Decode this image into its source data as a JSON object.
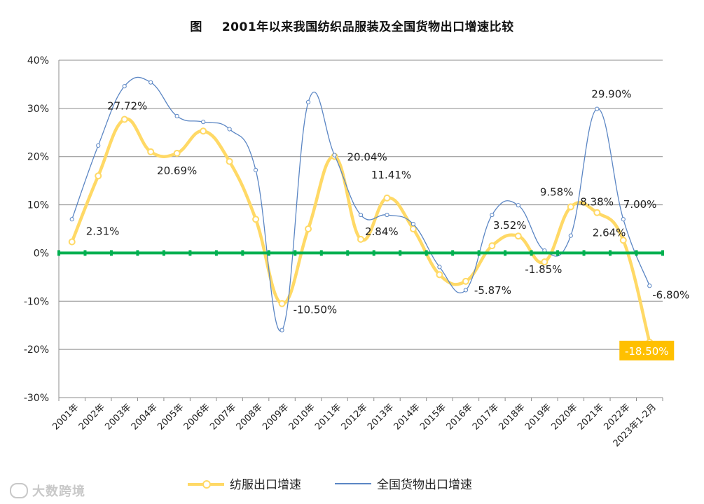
{
  "title": {
    "prefix": "图",
    "text": "2001年以来我国纺织品服装及全国货物出口增速比较"
  },
  "chart_data": {
    "type": "line",
    "title": "2001年以来我国纺织品服装及全国货物出口增速比较",
    "categories": [
      "2001年",
      "2002年",
      "2003年",
      "2004年",
      "2005年",
      "2006年",
      "2007年",
      "2008年",
      "2009年",
      "2010年",
      "2011年",
      "2012年",
      "2013年",
      "2014年",
      "2015年",
      "2016年",
      "2017年",
      "2018年",
      "2019年",
      "2020年",
      "2021年",
      "2022年",
      "2023年1-2月"
    ],
    "ylim": [
      -30,
      40
    ],
    "yticks": [
      -30,
      -20,
      -10,
      0,
      10,
      20,
      30,
      40
    ],
    "ytick_labels": [
      "-30%",
      "-20%",
      "-10%",
      "0%",
      "10%",
      "20%",
      "30%",
      "40%"
    ],
    "series": [
      {
        "name": "纺服出口增速",
        "color": "#ffd966",
        "values": [
          2.31,
          16,
          27.72,
          21,
          20.69,
          25.3,
          19,
          7,
          -10.5,
          5,
          20.04,
          2.84,
          11.41,
          5,
          -4.5,
          -5.87,
          1.5,
          3.52,
          -1.85,
          9.58,
          8.38,
          2.64,
          -18.5
        ]
      },
      {
        "name": "全国货物出口增速",
        "color": "#5b86c4",
        "values": [
          7,
          22.3,
          34.6,
          35.4,
          28.4,
          27.2,
          25.7,
          17.2,
          -16,
          31.3,
          20.3,
          7.9,
          7.9,
          6,
          -2.9,
          -7.7,
          7.9,
          9.9,
          0.5,
          3.6,
          29.9,
          7,
          -6.8
        ]
      }
    ],
    "data_labels": [
      {
        "text": "2.31%",
        "index": 0,
        "value": 2.31
      },
      {
        "text": "27.72%",
        "index": 2,
        "value": 27.72
      },
      {
        "text": "20.69%",
        "index": 4,
        "value": 20.69
      },
      {
        "text": "-10.50%",
        "index": 8,
        "value": -10.5
      },
      {
        "text": "20.04%",
        "index": 10,
        "value": 20.04
      },
      {
        "text": "2.84%",
        "index": 11,
        "value": 2.84
      },
      {
        "text": "11.41%",
        "index": 12,
        "value": 11.41
      },
      {
        "text": "-5.87%",
        "index": 15,
        "value": -5.87
      },
      {
        "text": "3.52%",
        "index": 17,
        "value": 3.52
      },
      {
        "text": "-1.85%",
        "index": 18,
        "value": -1.85
      },
      {
        "text": "9.58%",
        "index": 19,
        "value": 9.58
      },
      {
        "text": "8.38%",
        "index": 20,
        "value": 8.38
      },
      {
        "text": "2.64%",
        "index": 21,
        "value": 2.64
      },
      {
        "text": "29.90%",
        "index": 20,
        "value": 29.9
      },
      {
        "text": "7.00%",
        "index": 21,
        "value": 7.0
      },
      {
        "text": "-6.80%",
        "index": 22,
        "value": -6.8
      },
      {
        "text": "-18.50%",
        "index": 22,
        "value": -18.5,
        "highlight": true
      }
    ],
    "reference_line": {
      "value": 0,
      "color": "#00b050"
    },
    "highlight_color": "#ffc000",
    "legend": [
      "纺服出口增速",
      "全国货物出口增速"
    ],
    "legend_position": "bottom"
  },
  "watermark": "大数跨境"
}
